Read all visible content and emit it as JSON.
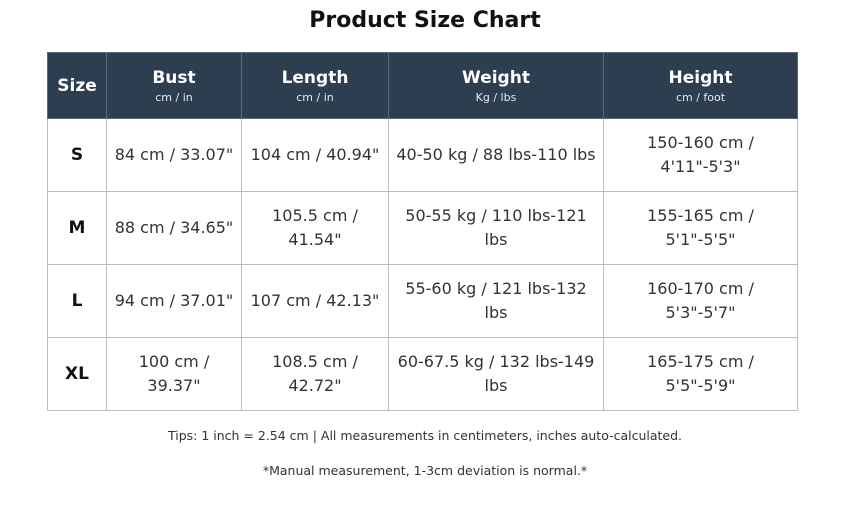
{
  "title": "Product Size Chart",
  "colors": {
    "header_bg": "#2c3e50",
    "header_text": "#ffffff",
    "border": "#bdbdbd"
  },
  "columns": [
    {
      "label": "Size",
      "unit": ""
    },
    {
      "label": "Bust",
      "unit": "cm / in"
    },
    {
      "label": "Length",
      "unit": "cm / in"
    },
    {
      "label": "Weight",
      "unit": "Kg / lbs"
    },
    {
      "label": "Height",
      "unit": "cm / foot"
    }
  ],
  "rows": [
    {
      "size": "S",
      "bust": "84 cm / 33.07\"",
      "length": "104 cm / 40.94\"",
      "weight": "40-50 kg / 88 lbs-110 lbs",
      "height": "150-160 cm / 4'11\"-5'3\""
    },
    {
      "size": "M",
      "bust": "88 cm / 34.65\"",
      "length": "105.5 cm / 41.54\"",
      "weight": "50-55 kg / 110 lbs-121 lbs",
      "height": "155-165 cm / 5'1\"-5'5\""
    },
    {
      "size": "L",
      "bust": "94 cm / 37.01\"",
      "length": "107 cm / 42.13\"",
      "weight": "55-60 kg / 121 lbs-132 lbs",
      "height": "160-170 cm / 5'3\"-5'7\""
    },
    {
      "size": "XL",
      "bust": "100 cm / 39.37\"",
      "length": "108.5 cm / 42.72\"",
      "weight": "60-67.5 kg / 132 lbs-149 lbs",
      "height": "165-175 cm / 5'5\"-5'9\""
    }
  ],
  "tips": "Tips: 1 inch = 2.54 cm | All measurements in centimeters, inches auto-calculated.",
  "note": "*Manual measurement, 1-3cm deviation is normal.*"
}
